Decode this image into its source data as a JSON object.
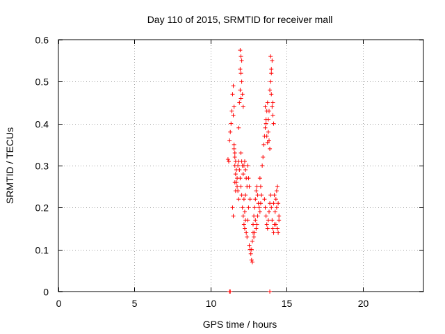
{
  "chart_data": {
    "type": "scatter",
    "title": "Day 110 of 2015, SRMTID for receiver mall",
    "xlabel": "GPS time / hours",
    "ylabel": "SRMTID / TECUs",
    "xlim": [
      0,
      24
    ],
    "ylim": [
      0,
      0.6
    ],
    "xticks": [
      "0",
      "5",
      "10",
      "15",
      "20"
    ],
    "yticks": [
      "0",
      "0.1",
      "0.2",
      "0.3",
      "0.4",
      "0.5",
      "0.6"
    ],
    "grid": true,
    "marker": "+",
    "marker_color": "#ff0000",
    "series": [
      {
        "name": "SRMTID",
        "points": [
          [
            11.25,
            0.0
          ],
          [
            11.3,
            0.0
          ],
          [
            13.9,
            0.0
          ],
          [
            11.15,
            0.315
          ],
          [
            11.2,
            0.31
          ],
          [
            11.25,
            0.36
          ],
          [
            11.3,
            0.38
          ],
          [
            11.35,
            0.4
          ],
          [
            11.4,
            0.43
          ],
          [
            11.45,
            0.47
          ],
          [
            11.5,
            0.49
          ],
          [
            11.55,
            0.35
          ],
          [
            11.6,
            0.32
          ],
          [
            11.45,
            0.2
          ],
          [
            11.5,
            0.18
          ],
          [
            11.55,
            0.34
          ],
          [
            11.6,
            0.3
          ],
          [
            11.65,
            0.28
          ],
          [
            11.7,
            0.26
          ],
          [
            11.75,
            0.25
          ],
          [
            11.8,
            0.3
          ],
          [
            11.5,
            0.42
          ],
          [
            11.55,
            0.44
          ],
          [
            11.6,
            0.33
          ],
          [
            11.65,
            0.31
          ],
          [
            11.7,
            0.29
          ],
          [
            11.75,
            0.27
          ],
          [
            11.8,
            0.24
          ],
          [
            11.85,
            0.22
          ],
          [
            11.6,
            0.26
          ],
          [
            11.65,
            0.24
          ],
          [
            11.85,
            0.39
          ],
          [
            11.9,
            0.45
          ],
          [
            11.95,
            0.48
          ],
          [
            12.0,
            0.52
          ],
          [
            12.05,
            0.55
          ],
          [
            11.95,
            0.575
          ],
          [
            12.0,
            0.56
          ],
          [
            11.95,
            0.53
          ],
          [
            12.05,
            0.5
          ],
          [
            12.1,
            0.47
          ],
          [
            12.15,
            0.44
          ],
          [
            12.0,
            0.46
          ],
          [
            11.85,
            0.31
          ],
          [
            11.9,
            0.29
          ],
          [
            11.95,
            0.27
          ],
          [
            12.0,
            0.25
          ],
          [
            12.05,
            0.23
          ],
          [
            12.1,
            0.2
          ],
          [
            12.15,
            0.18
          ],
          [
            12.2,
            0.16
          ],
          [
            12.25,
            0.15
          ],
          [
            12.0,
            0.33
          ],
          [
            12.05,
            0.31
          ],
          [
            12.1,
            0.3
          ],
          [
            12.15,
            0.28
          ],
          [
            12.2,
            0.3
          ],
          [
            12.25,
            0.31
          ],
          [
            12.3,
            0.29
          ],
          [
            12.35,
            0.27
          ],
          [
            12.4,
            0.25
          ],
          [
            12.3,
            0.23
          ],
          [
            12.2,
            0.22
          ],
          [
            12.25,
            0.19
          ],
          [
            12.3,
            0.17
          ],
          [
            12.35,
            0.14
          ],
          [
            12.4,
            0.13
          ],
          [
            12.45,
            0.17
          ],
          [
            12.5,
            0.2
          ],
          [
            12.55,
            0.11
          ],
          [
            12.6,
            0.1
          ],
          [
            12.65,
            0.09
          ],
          [
            12.7,
            0.075
          ],
          [
            12.75,
            0.07
          ],
          [
            12.7,
            0.1
          ],
          [
            12.75,
            0.12
          ],
          [
            12.8,
            0.14
          ],
          [
            12.8,
            0.16
          ],
          [
            12.85,
            0.18
          ],
          [
            12.9,
            0.2
          ],
          [
            12.95,
            0.22
          ],
          [
            13.0,
            0.24
          ],
          [
            13.05,
            0.25
          ],
          [
            13.1,
            0.23
          ],
          [
            13.15,
            0.21
          ],
          [
            13.2,
            0.2
          ],
          [
            13.25,
            0.19
          ],
          [
            13.3,
            0.21
          ],
          [
            13.35,
            0.23
          ],
          [
            13.3,
            0.25
          ],
          [
            13.25,
            0.27
          ],
          [
            12.95,
            0.17
          ],
          [
            13.0,
            0.15
          ],
          [
            13.05,
            0.16
          ],
          [
            13.1,
            0.18
          ],
          [
            12.85,
            0.13
          ],
          [
            12.9,
            0.14
          ],
          [
            12.45,
            0.3
          ],
          [
            12.5,
            0.27
          ],
          [
            12.55,
            0.25
          ],
          [
            12.6,
            0.22
          ],
          [
            13.4,
            0.3
          ],
          [
            13.45,
            0.32
          ],
          [
            13.5,
            0.35
          ],
          [
            13.55,
            0.37
          ],
          [
            13.6,
            0.39
          ],
          [
            13.65,
            0.41
          ],
          [
            13.7,
            0.43
          ],
          [
            13.75,
            0.45
          ],
          [
            13.8,
            0.38
          ],
          [
            13.85,
            0.36
          ],
          [
            13.9,
            0.34
          ],
          [
            13.6,
            0.44
          ],
          [
            13.65,
            0.4
          ],
          [
            13.7,
            0.37
          ],
          [
            13.75,
            0.355
          ],
          [
            13.8,
            0.41
          ],
          [
            13.85,
            0.43
          ],
          [
            13.9,
            0.48
          ],
          [
            13.95,
            0.5
          ],
          [
            14.0,
            0.53
          ],
          [
            14.05,
            0.55
          ],
          [
            13.95,
            0.56
          ],
          [
            14.0,
            0.52
          ],
          [
            14.05,
            0.44
          ],
          [
            14.1,
            0.42
          ],
          [
            14.15,
            0.4
          ],
          [
            14.0,
            0.47
          ],
          [
            14.1,
            0.45
          ],
          [
            13.55,
            0.22
          ],
          [
            13.6,
            0.2
          ],
          [
            13.65,
            0.18
          ],
          [
            13.7,
            0.16
          ],
          [
            13.75,
            0.15
          ],
          [
            13.8,
            0.17
          ],
          [
            13.85,
            0.19
          ],
          [
            13.9,
            0.21
          ],
          [
            13.95,
            0.23
          ],
          [
            14.0,
            0.2
          ],
          [
            14.05,
            0.17
          ],
          [
            14.1,
            0.15
          ],
          [
            14.15,
            0.14
          ],
          [
            14.2,
            0.16
          ],
          [
            14.25,
            0.19
          ],
          [
            14.3,
            0.22
          ],
          [
            14.35,
            0.24
          ],
          [
            14.4,
            0.25
          ],
          [
            14.45,
            0.21
          ],
          [
            14.5,
            0.18
          ],
          [
            14.3,
            0.16
          ],
          [
            14.35,
            0.2
          ],
          [
            14.2,
            0.23
          ],
          [
            14.15,
            0.21
          ],
          [
            14.4,
            0.15
          ],
          [
            14.45,
            0.14
          ],
          [
            14.5,
            0.17
          ]
        ]
      }
    ]
  }
}
